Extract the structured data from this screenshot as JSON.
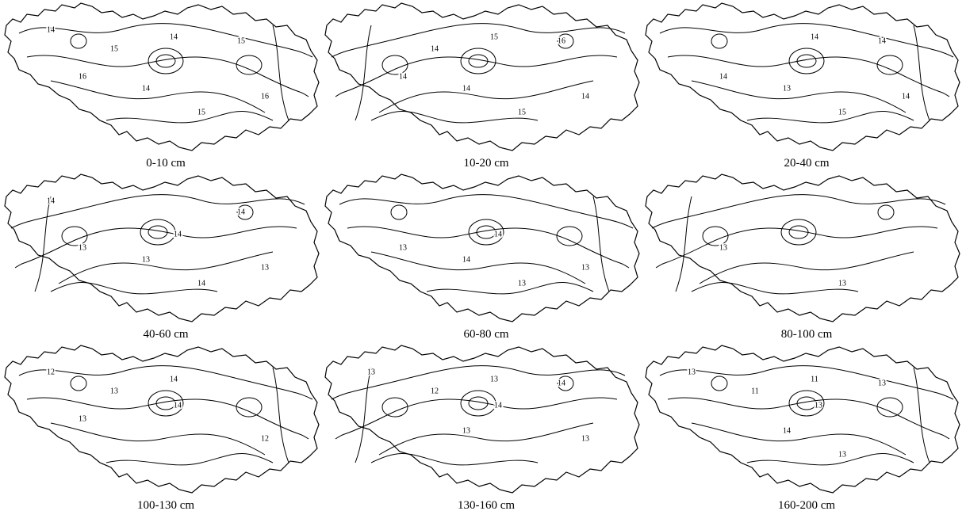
{
  "panels": [
    {
      "caption": "0-10 cm",
      "contour_labels": [
        "14",
        "15",
        "14",
        "15",
        "14",
        "15",
        "16",
        "16"
      ]
    },
    {
      "caption": "10-20 cm",
      "contour_labels": [
        "14",
        "15",
        "16",
        "14",
        "15",
        "14",
        "14"
      ]
    },
    {
      "caption": "20-40 cm",
      "contour_labels": [
        "14",
        "14",
        "13",
        "15",
        "14",
        "14"
      ]
    },
    {
      "caption": "40-60 cm",
      "contour_labels": [
        "14",
        "13",
        "14",
        "13",
        "13",
        "14",
        "14"
      ]
    },
    {
      "caption": "60-80 cm",
      "contour_labels": [
        "14",
        "13",
        "13",
        "13",
        "14"
      ]
    },
    {
      "caption": "80-100 cm",
      "contour_labels": [
        "13",
        "13"
      ]
    },
    {
      "caption": "100-130 cm",
      "contour_labels": [
        "13",
        "12",
        "14",
        "12",
        "13",
        "14"
      ]
    },
    {
      "caption": "130-160 cm",
      "contour_labels": [
        "13",
        "14",
        "13",
        "12",
        "13",
        "14",
        "13"
      ]
    },
    {
      "caption": "160-200 cm",
      "contour_labels": [
        "13",
        "13",
        "11",
        "11",
        "13",
        "14",
        "13"
      ]
    }
  ]
}
